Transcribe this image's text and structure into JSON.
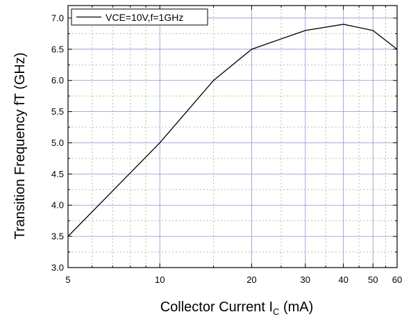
{
  "chart_data": {
    "type": "line",
    "xscale": "log",
    "xlim": [
      5,
      60
    ],
    "ylim": [
      3.0,
      7.2
    ],
    "xticks": [
      5,
      10,
      20,
      30,
      40,
      50,
      60
    ],
    "xtick_labels": [
      "5",
      "10",
      "20",
      "30",
      "40",
      "50",
      "60"
    ],
    "yticks": [
      3.0,
      3.5,
      4.0,
      4.5,
      5.0,
      5.5,
      6.0,
      6.5,
      7.0
    ],
    "ytick_labels": [
      "3.0",
      "3.5",
      "4.0",
      "4.5",
      "5.0",
      "5.5",
      "6.0",
      "6.5",
      "7.0"
    ],
    "xlabel_main": "Collector Current  I",
    "xlabel_sub": "C",
    "xlabel_unit": " (mA)",
    "ylabel": "Transition Frequency fT (GHz)",
    "grid": true,
    "legend_position": "top-left",
    "series": [
      {
        "name": "VCE=10V,f=1GHz",
        "color": "#000000",
        "x": [
          5,
          10,
          15,
          20,
          30,
          40,
          50,
          60
        ],
        "y": [
          3.5,
          5.0,
          6.0,
          6.5,
          6.8,
          6.9,
          6.8,
          6.5
        ]
      }
    ]
  }
}
